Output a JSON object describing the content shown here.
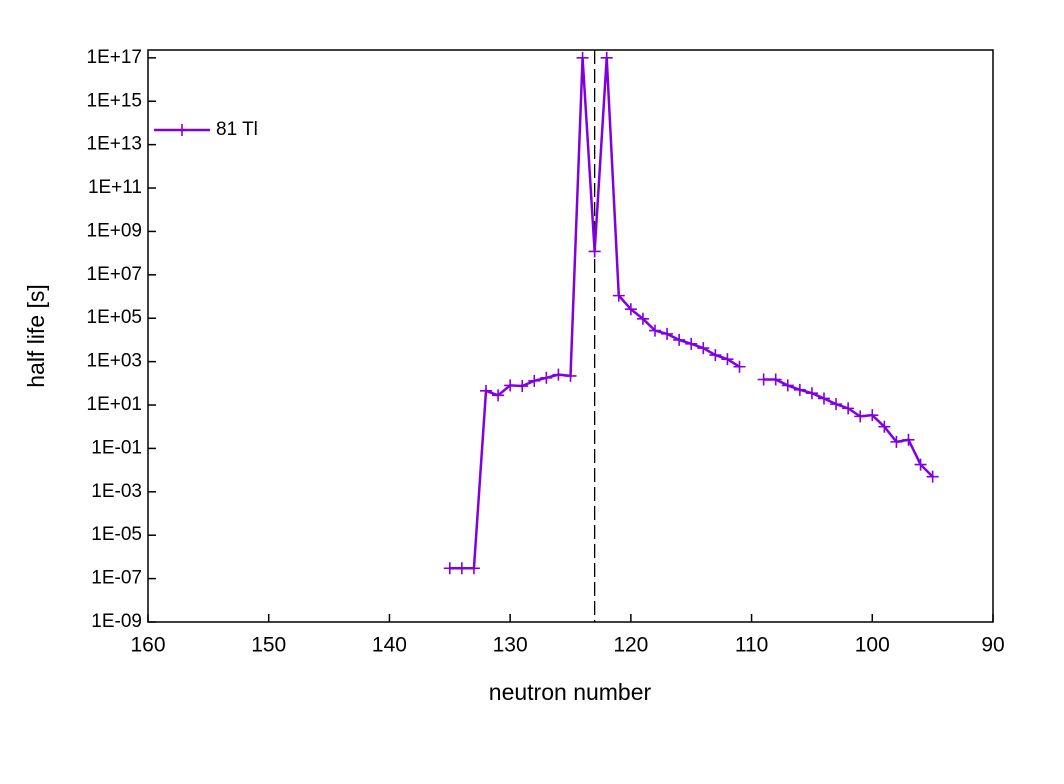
{
  "chart_data": {
    "type": "line",
    "x_label": "neutron number",
    "y_label": "half life [s]",
    "x": [
      135,
      134,
      133,
      132,
      131,
      130,
      129,
      128,
      127,
      126,
      125,
      124,
      123,
      122,
      121,
      120,
      119,
      118,
      117,
      116,
      115,
      114,
      113,
      112,
      111,
      110,
      109,
      108,
      107,
      106,
      105,
      104,
      103,
      102,
      101,
      100,
      99,
      98,
      97,
      96,
      95
    ],
    "series": [
      {
        "name": "81 Tl",
        "color": "#8000e0",
        "values": [
          3e-07,
          3e-07,
          3e-07,
          45,
          28,
          80,
          75,
          130,
          180,
          250,
          220,
          1e+17,
          120000000.0,
          1e+17,
          1100000.0,
          260000.0,
          94000.0,
          27000.0,
          19000.0,
          10000.0,
          6600.0,
          4200.0,
          2000.0,
          1300.0,
          580,
          null,
          150,
          150,
          80,
          50,
          35,
          20,
          11,
          7,
          3,
          3.4,
          1,
          0.2,
          0.25,
          0.018,
          0.005
        ]
      }
    ],
    "xlim": [
      160,
      90
    ],
    "xticks": [
      160,
      150,
      140,
      130,
      120,
      110,
      100,
      90
    ],
    "ylim": [
      1e-09,
      2.3e+17
    ],
    "yscale": "log",
    "yticks": [
      {
        "value": 1e-09,
        "label": "1E-09"
      },
      {
        "value": 1e-07,
        "label": "1E-07"
      },
      {
        "value": 1e-05,
        "label": "1E-05"
      },
      {
        "value": 0.001,
        "label": "1E-03"
      },
      {
        "value": 0.1,
        "label": "1E-01"
      },
      {
        "value": 10,
        "label": "1E+01"
      },
      {
        "value": 1000,
        "label": "1E+03"
      },
      {
        "value": 100000.0,
        "label": "1E+05"
      },
      {
        "value": 10000000.0,
        "label": "1E+07"
      },
      {
        "value": 1000000000.0,
        "label": "1E+09"
      },
      {
        "value": 100000000000.0,
        "label": "1E+11"
      },
      {
        "value": 10000000000000.0,
        "label": "1E+13"
      },
      {
        "value": 1000000000000000.0,
        "label": "1E+15"
      },
      {
        "value": 1e+17,
        "label": "1E+17"
      }
    ],
    "vline": 123,
    "legend": "upper left"
  }
}
